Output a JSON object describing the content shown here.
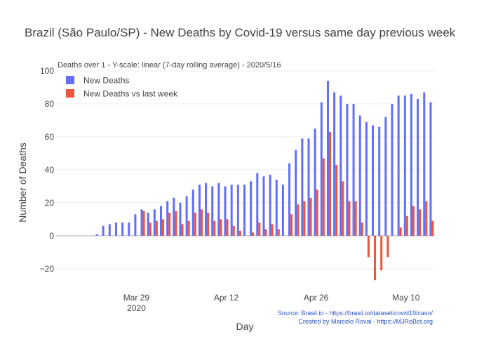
{
  "chart_data": {
    "type": "bar",
    "title": "Brazil (São Paulo/SP) - New Deaths by Covid-19 versus same day previous week",
    "subtitle": "Deaths over 1 - Y-scale: linear (7-day rolling average) - 2020/5/16",
    "xlabel": "Day",
    "ylabel": "Number of Deaths",
    "ylim": [
      -35,
      100
    ],
    "yticks": [
      -20,
      0,
      20,
      40,
      60,
      80,
      100
    ],
    "xticks": [
      {
        "date": "2020-03-29",
        "label": "Mar 29",
        "sublabel": "2020"
      },
      {
        "date": "2020-04-12",
        "label": "Apr 12",
        "sublabel": ""
      },
      {
        "date": "2020-04-26",
        "label": "Apr 26",
        "sublabel": ""
      },
      {
        "date": "2020-05-10",
        "label": "May 10",
        "sublabel": ""
      }
    ],
    "legend_position": "top-left",
    "grid": true,
    "series": [
      {
        "name": "New Deaths",
        "color": "#636efa"
      },
      {
        "name": "New Deaths vs last week",
        "color": "#ef553b"
      }
    ],
    "data": [
      {
        "date": "2020-03-17",
        "new": 0,
        "vs": 0
      },
      {
        "date": "2020-03-18",
        "new": 0,
        "vs": 0
      },
      {
        "date": "2020-03-19",
        "new": 0,
        "vs": 0
      },
      {
        "date": "2020-03-20",
        "new": 0,
        "vs": 0
      },
      {
        "date": "2020-03-21",
        "new": 0,
        "vs": 0
      },
      {
        "date": "2020-03-22",
        "new": 0,
        "vs": 0
      },
      {
        "date": "2020-03-23",
        "new": 1,
        "vs": 0
      },
      {
        "date": "2020-03-24",
        "new": 6,
        "vs": 0
      },
      {
        "date": "2020-03-25",
        "new": 7,
        "vs": 0
      },
      {
        "date": "2020-03-26",
        "new": 8,
        "vs": 0
      },
      {
        "date": "2020-03-27",
        "new": 8,
        "vs": 0
      },
      {
        "date": "2020-03-28",
        "new": 8,
        "vs": 0
      },
      {
        "date": "2020-03-29",
        "new": 13,
        "vs": 0
      },
      {
        "date": "2020-03-30",
        "new": 16,
        "vs": 15
      },
      {
        "date": "2020-03-31",
        "new": 14,
        "vs": 8
      },
      {
        "date": "2020-04-01",
        "new": 16,
        "vs": 9
      },
      {
        "date": "2020-04-02",
        "new": 18,
        "vs": 10
      },
      {
        "date": "2020-04-03",
        "new": 21,
        "vs": 14
      },
      {
        "date": "2020-04-04",
        "new": 23,
        "vs": 15
      },
      {
        "date": "2020-04-05",
        "new": 20,
        "vs": 7
      },
      {
        "date": "2020-04-06",
        "new": 24,
        "vs": 9
      },
      {
        "date": "2020-04-07",
        "new": 28,
        "vs": 14
      },
      {
        "date": "2020-04-08",
        "new": 31,
        "vs": 16
      },
      {
        "date": "2020-04-09",
        "new": 32,
        "vs": 14
      },
      {
        "date": "2020-04-10",
        "new": 30,
        "vs": 9
      },
      {
        "date": "2020-04-11",
        "new": 32,
        "vs": 10
      },
      {
        "date": "2020-04-12",
        "new": 30,
        "vs": 10
      },
      {
        "date": "2020-04-13",
        "new": 31,
        "vs": 6
      },
      {
        "date": "2020-04-14",
        "new": 31,
        "vs": 3
      },
      {
        "date": "2020-04-15",
        "new": 31,
        "vs": 0
      },
      {
        "date": "2020-04-16",
        "new": 33,
        "vs": 2
      },
      {
        "date": "2020-04-17",
        "new": 38,
        "vs": 8
      },
      {
        "date": "2020-04-18",
        "new": 36,
        "vs": 4
      },
      {
        "date": "2020-04-19",
        "new": 37,
        "vs": 7
      },
      {
        "date": "2020-04-20",
        "new": 34,
        "vs": 4
      },
      {
        "date": "2020-04-21",
        "new": 31,
        "vs": 0
      },
      {
        "date": "2020-04-22",
        "new": 44,
        "vs": 13
      },
      {
        "date": "2020-04-23",
        "new": 52,
        "vs": 19
      },
      {
        "date": "2020-04-24",
        "new": 59,
        "vs": 21
      },
      {
        "date": "2020-04-25",
        "new": 59,
        "vs": 23
      },
      {
        "date": "2020-04-26",
        "new": 65,
        "vs": 28
      },
      {
        "date": "2020-04-27",
        "new": 81,
        "vs": 47
      },
      {
        "date": "2020-04-28",
        "new": 94,
        "vs": 63
      },
      {
        "date": "2020-04-29",
        "new": 87,
        "vs": 43
      },
      {
        "date": "2020-04-30",
        "new": 85,
        "vs": 33
      },
      {
        "date": "2020-05-01",
        "new": 80,
        "vs": 21
      },
      {
        "date": "2020-05-02",
        "new": 80,
        "vs": 21
      },
      {
        "date": "2020-05-03",
        "new": 73,
        "vs": 8
      },
      {
        "date": "2020-05-04",
        "new": 69,
        "vs": -13
      },
      {
        "date": "2020-05-05",
        "new": 67,
        "vs": -27
      },
      {
        "date": "2020-05-06",
        "new": 66,
        "vs": -21
      },
      {
        "date": "2020-05-07",
        "new": 72,
        "vs": -13
      },
      {
        "date": "2020-05-08",
        "new": 80,
        "vs": 0
      },
      {
        "date": "2020-05-09",
        "new": 85,
        "vs": 5
      },
      {
        "date": "2020-05-10",
        "new": 85,
        "vs": 12
      },
      {
        "date": "2020-05-11",
        "new": 86,
        "vs": 18
      },
      {
        "date": "2020-05-12",
        "new": 83,
        "vs": 16
      },
      {
        "date": "2020-05-13",
        "new": 87,
        "vs": 21
      },
      {
        "date": "2020-05-14",
        "new": 81,
        "vs": 9
      }
    ]
  },
  "source": {
    "line1": "Source: Brasil.io - https://brasil.io/dataset/covid19/caso/",
    "line2": "Created by Marcelo Rovai - https://MJRoBot.org"
  }
}
